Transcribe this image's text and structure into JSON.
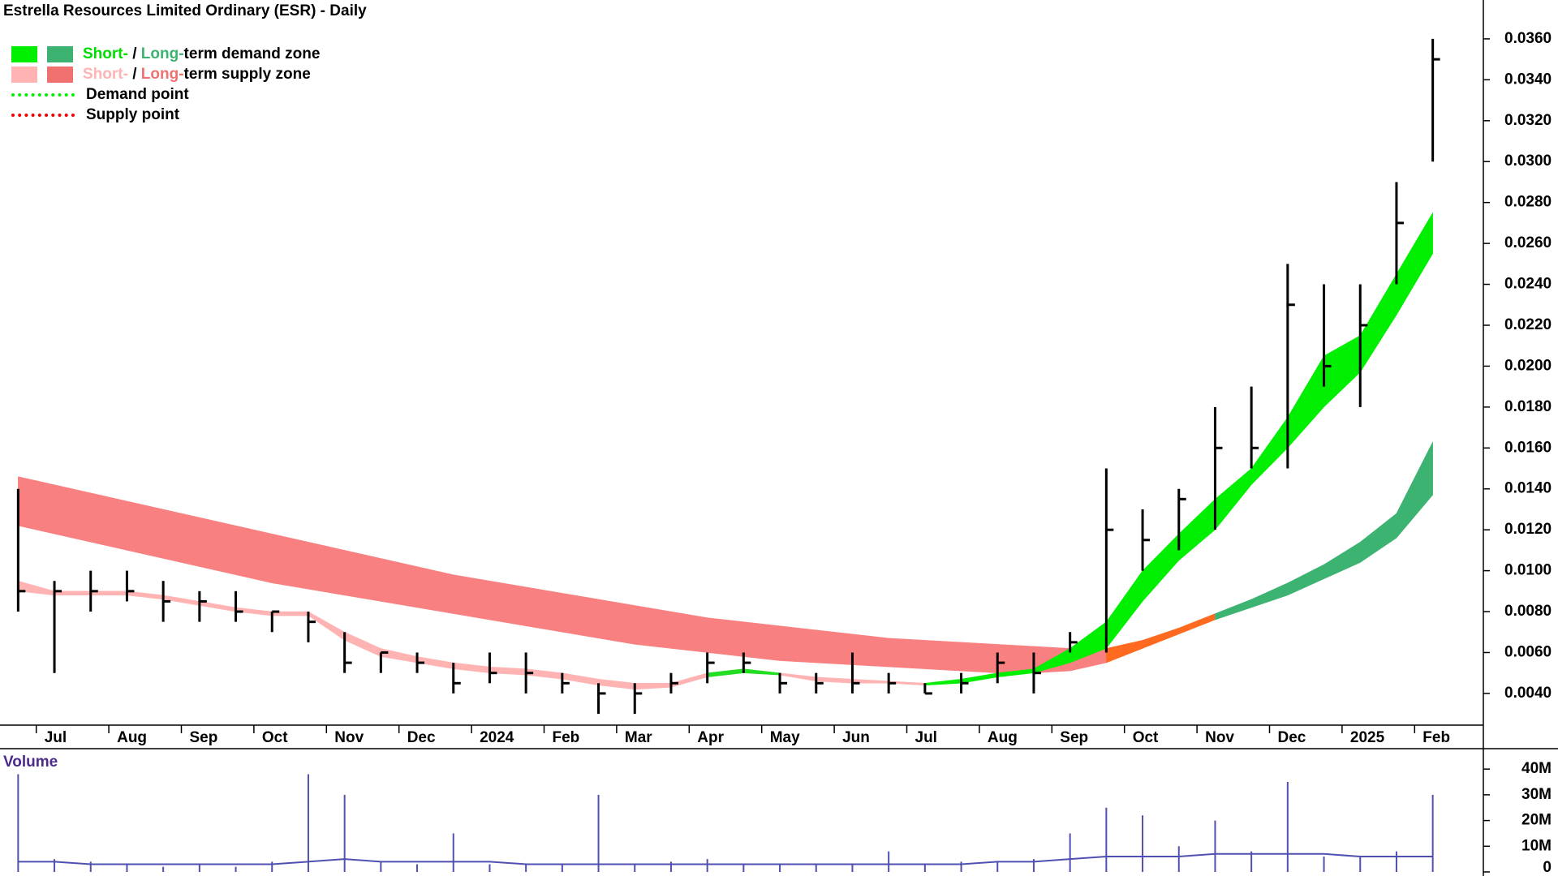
{
  "chart_data": [
    {
      "type": "price-zones",
      "title": "Estrella Resources Limited Ordinary (ESR) - Daily",
      "legend": [
        {
          "parts": [
            "Short-",
            " / ",
            "Long-",
            "term demand zone"
          ]
        },
        {
          "parts": [
            "Short-",
            " / ",
            "Long-",
            "term supply zone"
          ]
        },
        {
          "parts": [
            "Demand point"
          ]
        },
        {
          "parts": [
            "Supply point"
          ]
        }
      ],
      "categories": [
        null,
        "Jul",
        null,
        "Aug",
        null,
        "Sep",
        null,
        "Oct",
        null,
        "Nov",
        null,
        "Dec",
        null,
        "2024",
        null,
        "Feb",
        null,
        "Mar",
        null,
        "Apr",
        null,
        "May",
        null,
        "Jun",
        null,
        "Jul",
        null,
        "Aug",
        null,
        "Sep",
        null,
        "Oct",
        null,
        "Nov",
        null,
        "Dec",
        null,
        "2025",
        null,
        "Feb"
      ],
      "high": [
        0.014,
        0.0095,
        0.01,
        0.01,
        0.0095,
        0.009,
        0.009,
        0.008,
        0.008,
        0.007,
        0.006,
        0.006,
        0.0055,
        0.006,
        0.006,
        0.005,
        0.0045,
        0.0045,
        0.005,
        0.006,
        0.006,
        0.005,
        0.005,
        0.006,
        0.005,
        0.0045,
        0.005,
        0.006,
        0.006,
        0.007,
        0.015,
        0.013,
        0.014,
        0.018,
        0.019,
        0.025,
        0.024,
        0.024,
        0.029,
        0.036
      ],
      "low": [
        0.008,
        0.005,
        0.008,
        0.0085,
        0.0075,
        0.0075,
        0.0075,
        0.007,
        0.0065,
        0.005,
        0.005,
        0.005,
        0.004,
        0.0045,
        0.004,
        0.004,
        0.003,
        0.003,
        0.004,
        0.0045,
        0.005,
        0.004,
        0.004,
        0.004,
        0.004,
        0.004,
        0.004,
        0.0045,
        0.004,
        0.006,
        0.006,
        0.01,
        0.011,
        0.012,
        0.015,
        0.015,
        0.019,
        0.018,
        0.024,
        0.03
      ],
      "close": [
        0.009,
        0.009,
        0.009,
        0.009,
        0.0085,
        0.0085,
        0.008,
        0.008,
        0.0075,
        0.0055,
        0.006,
        0.0055,
        0.0045,
        0.005,
        0.005,
        0.0045,
        0.004,
        0.004,
        0.0045,
        0.0055,
        0.0055,
        0.0045,
        0.0045,
        0.0045,
        0.0045,
        0.004,
        0.0045,
        0.0055,
        0.005,
        0.0065,
        0.012,
        0.0115,
        0.0135,
        0.016,
        0.016,
        0.023,
        0.02,
        0.022,
        0.027,
        0.035
      ],
      "long_term_zone": {
        "upper": [
          0.0146,
          0.0142,
          0.0138,
          0.0134,
          0.013,
          0.0126,
          0.0122,
          0.0118,
          0.0114,
          0.011,
          0.0106,
          0.0102,
          0.0098,
          0.0095,
          0.0092,
          0.0089,
          0.0086,
          0.0083,
          0.008,
          0.0077,
          0.0075,
          0.0073,
          0.0071,
          0.0069,
          0.0067,
          0.0066,
          0.0065,
          0.0064,
          0.0063,
          0.0062,
          0.0062,
          0.0066,
          0.0072,
          0.0079,
          0.0086,
          0.0094,
          0.0103,
          0.0114,
          0.0128,
          0.0163
        ],
        "lower": [
          0.0122,
          0.0118,
          0.0114,
          0.011,
          0.0106,
          0.0102,
          0.0098,
          0.0094,
          0.0091,
          0.0088,
          0.0085,
          0.0082,
          0.0079,
          0.0076,
          0.0073,
          0.007,
          0.0067,
          0.0064,
          0.0062,
          0.006,
          0.0058,
          0.0056,
          0.0055,
          0.0054,
          0.0053,
          0.0052,
          0.0051,
          0.005,
          0.005,
          0.0051,
          0.0055,
          0.0062,
          0.0069,
          0.0076,
          0.0082,
          0.0088,
          0.0096,
          0.0104,
          0.0116,
          0.0137
        ],
        "colors": [
          "#f88080",
          "#f88080",
          "#f88080",
          "#f88080",
          "#f88080",
          "#f88080",
          "#f88080",
          "#f88080",
          "#f88080",
          "#f88080",
          "#f88080",
          "#f88080",
          "#f88080",
          "#f88080",
          "#f88080",
          "#f88080",
          "#f88080",
          "#f88080",
          "#f88080",
          "#f88080",
          "#f88080",
          "#f88080",
          "#f88080",
          "#f88080",
          "#f88080",
          "#f88080",
          "#f88080",
          "#f88080",
          "#f88080",
          "#f88080",
          "#ff6a20",
          "#ff6a20",
          "#ff6a20",
          "#3cb371",
          "#3cb371",
          "#3cb371",
          "#3cb371",
          "#3cb371",
          "#3cb371",
          "#3cb371"
        ]
      },
      "short_term_zone": {
        "upper": [
          0.0095,
          0.009,
          0.009,
          0.009,
          0.0088,
          0.0085,
          0.0082,
          0.008,
          0.008,
          0.007,
          0.0062,
          0.0058,
          0.0055,
          0.0053,
          0.0052,
          0.005,
          0.0047,
          0.0045,
          0.0045,
          0.005,
          0.0052,
          0.005,
          0.0048,
          0.0047,
          0.0046,
          0.0045,
          0.0047,
          0.005,
          0.0052,
          0.0062,
          0.0075,
          0.01,
          0.0118,
          0.0135,
          0.015,
          0.0175,
          0.0205,
          0.0215,
          0.0245,
          0.0275
        ],
        "lower": [
          0.009,
          0.0088,
          0.0088,
          0.0088,
          0.0086,
          0.0083,
          0.008,
          0.0078,
          0.0078,
          0.0066,
          0.0058,
          0.0055,
          0.0052,
          0.005,
          0.0049,
          0.0047,
          0.0044,
          0.0042,
          0.0043,
          0.0048,
          0.005,
          0.0049,
          0.0046,
          0.0045,
          0.0045,
          0.0044,
          0.0045,
          0.0048,
          0.005,
          0.0055,
          0.0062,
          0.0085,
          0.0105,
          0.012,
          0.0142,
          0.016,
          0.018,
          0.0197,
          0.0225,
          0.0255
        ],
        "colors": [
          "#ffb3b3",
          "#ffb3b3",
          "#ffb3b3",
          "#ffb3b3",
          "#ffb3b3",
          "#ffb3b3",
          "#ffb3b3",
          "#ffb3b3",
          "#ffb3b3",
          "#ffb3b3",
          "#ffb3b3",
          "#ffb3b3",
          "#ffb3b3",
          "#ffb3b3",
          "#ffb3b3",
          "#ffb3b3",
          "#ffb3b3",
          "#ffb3b3",
          "#ffb3b3",
          "#22dd22",
          "#22dd22",
          "#ffb3b3",
          "#ffb3b3",
          "#ffb3b3",
          "#ffb3b3",
          "#00ee00",
          "#00ee00",
          "#00ee00",
          "#00ee00",
          "#00ee00",
          "#00ee00",
          "#00ee00",
          "#00ee00",
          "#00ee00",
          "#00ee00",
          "#00ee00",
          "#00ee00",
          "#00ee00",
          "#00ee00",
          "#00ee00"
        ]
      },
      "ylim": [
        0.00245,
        0.0379
      ],
      "yticks": [
        {
          "value": 0.004,
          "label": "0.0040"
        },
        {
          "value": 0.006,
          "label": "0.0060"
        },
        {
          "value": 0.008,
          "label": "0.0080"
        },
        {
          "value": 0.01,
          "label": "0.0100"
        },
        {
          "value": 0.012,
          "label": "0.0120"
        },
        {
          "value": 0.014,
          "label": "0.0140"
        },
        {
          "value": 0.016,
          "label": "0.0160"
        },
        {
          "value": 0.018,
          "label": "0.0180"
        },
        {
          "value": 0.02,
          "label": "0.0200"
        },
        {
          "value": 0.022,
          "label": "0.0220"
        },
        {
          "value": 0.024,
          "label": "0.0240"
        },
        {
          "value": 0.026,
          "label": "0.0260"
        },
        {
          "value": 0.028,
          "label": "0.0280"
        },
        {
          "value": 0.03,
          "label": "0.0300"
        },
        {
          "value": 0.032,
          "label": "0.0320"
        },
        {
          "value": 0.034,
          "label": "0.0340"
        },
        {
          "value": 0.036,
          "label": "0.0360"
        }
      ]
    },
    {
      "type": "volume",
      "title": "Volume",
      "color": "#5050b0",
      "average_color": "#5050b0",
      "values": [
        38000000,
        5000000,
        4000000,
        3000000,
        2000000,
        3000000,
        2000000,
        4000000,
        38000000,
        30000000,
        4000000,
        3000000,
        15000000,
        3000000,
        3000000,
        3000000,
        30000000,
        3000000,
        4000000,
        5000000,
        3000000,
        3000000,
        3000000,
        3000000,
        8000000,
        3000000,
        4000000,
        4000000,
        5000000,
        15000000,
        25000000,
        22000000,
        10000000,
        20000000,
        8000000,
        35000000,
        6000000,
        6000000,
        8000000,
        30000000
      ],
      "average": [
        4000000,
        4000000,
        3000000,
        3000000,
        3000000,
        3000000,
        3000000,
        3000000,
        4000000,
        5000000,
        4000000,
        4000000,
        4000000,
        4000000,
        3000000,
        3000000,
        3000000,
        3000000,
        3000000,
        3000000,
        3000000,
        3000000,
        3000000,
        3000000,
        3000000,
        3000000,
        3000000,
        4000000,
        4000000,
        5000000,
        6000000,
        6000000,
        6000000,
        7000000,
        7000000,
        7000000,
        7000000,
        6000000,
        6000000,
        6000000
      ],
      "ylim": [
        0,
        47000000
      ],
      "yticks": [
        0,
        {
          "value": 10000000,
          "label": "10M"
        },
        {
          "value": 20000000,
          "label": "20M"
        },
        {
          "value": 30000000,
          "label": "30M"
        },
        {
          "value": 40000000,
          "label": "40M"
        }
      ]
    }
  ]
}
